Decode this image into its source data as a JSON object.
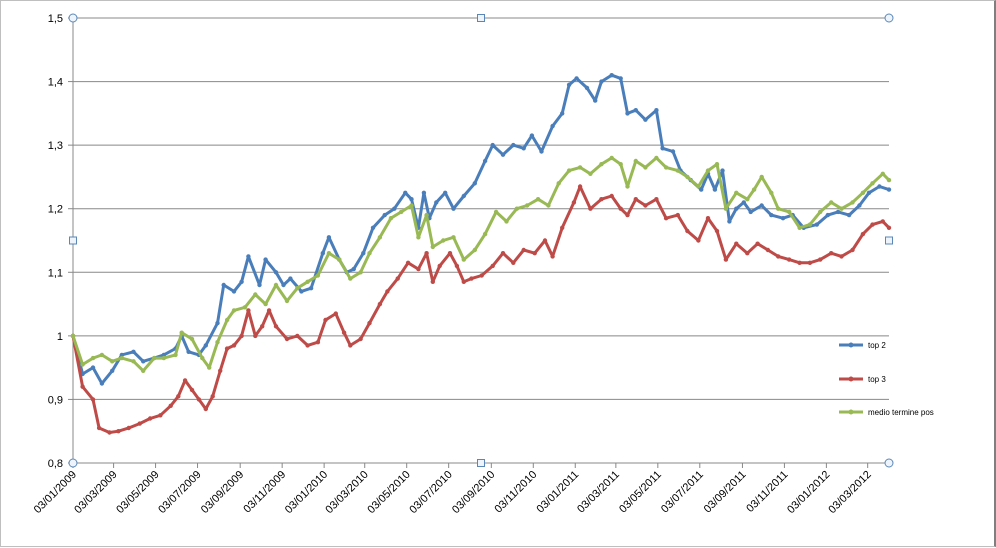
{
  "chart_data": {
    "type": "line",
    "ylim": [
      0.8,
      1.5
    ],
    "y_ticks": [
      "0,8",
      "0,9",
      "1",
      "1,1",
      "1,2",
      "1,3",
      "1,4",
      "1,5"
    ],
    "x_tick_labels": [
      "03/01/2009",
      "03/03/2009",
      "03/05/2009",
      "03/07/2009",
      "03/09/2009",
      "03/11/2009",
      "03/01/2010",
      "03/03/2010",
      "03/05/2010",
      "03/07/2010",
      "03/09/2010",
      "03/11/2010",
      "03/01/2011",
      "03/03/2011",
      "03/05/2011",
      "03/07/2011",
      "03/09/2011",
      "03/11/2011",
      "03/01/2012",
      "03/03/2012"
    ],
    "grid": "horizontal",
    "legend_position": "right",
    "x_range": [
      "2009-01-03",
      "2012-04-03"
    ],
    "series": [
      {
        "name": "top 2",
        "color": "#4a7ebb",
        "points": [
          [
            "2009-01-03",
            1.0
          ],
          [
            "2009-01-17",
            0.94
          ],
          [
            "2009-02-01",
            0.95
          ],
          [
            "2009-02-14",
            0.925
          ],
          [
            "2009-03-01",
            0.945
          ],
          [
            "2009-03-15",
            0.97
          ],
          [
            "2009-04-01",
            0.975
          ],
          [
            "2009-04-15",
            0.96
          ],
          [
            "2009-05-01",
            0.965
          ],
          [
            "2009-05-15",
            0.97
          ],
          [
            "2009-06-01",
            0.98
          ],
          [
            "2009-06-10",
            1.0
          ],
          [
            "2009-06-20",
            0.975
          ],
          [
            "2009-07-05",
            0.97
          ],
          [
            "2009-07-15",
            0.985
          ],
          [
            "2009-08-01",
            1.02
          ],
          [
            "2009-08-10",
            1.08
          ],
          [
            "2009-08-25",
            1.07
          ],
          [
            "2009-09-05",
            1.085
          ],
          [
            "2009-09-15",
            1.125
          ],
          [
            "2009-10-01",
            1.08
          ],
          [
            "2009-10-10",
            1.12
          ],
          [
            "2009-10-25",
            1.1
          ],
          [
            "2009-11-05",
            1.08
          ],
          [
            "2009-11-15",
            1.09
          ],
          [
            "2009-12-01",
            1.07
          ],
          [
            "2009-12-15",
            1.075
          ],
          [
            "2010-01-01",
            1.13
          ],
          [
            "2010-01-10",
            1.155
          ],
          [
            "2010-01-25",
            1.12
          ],
          [
            "2010-02-05",
            1.1
          ],
          [
            "2010-02-15",
            1.105
          ],
          [
            "2010-03-01",
            1.13
          ],
          [
            "2010-03-15",
            1.17
          ],
          [
            "2010-04-01",
            1.19
          ],
          [
            "2010-04-15",
            1.2
          ],
          [
            "2010-05-01",
            1.225
          ],
          [
            "2010-05-10",
            1.215
          ],
          [
            "2010-05-20",
            1.17
          ],
          [
            "2010-05-28",
            1.225
          ],
          [
            "2010-06-05",
            1.185
          ],
          [
            "2010-06-15",
            1.21
          ],
          [
            "2010-06-28",
            1.225
          ],
          [
            "2010-07-10",
            1.2
          ],
          [
            "2010-07-25",
            1.22
          ],
          [
            "2010-08-10",
            1.24
          ],
          [
            "2010-08-25",
            1.275
          ],
          [
            "2010-09-05",
            1.3
          ],
          [
            "2010-09-20",
            1.285
          ],
          [
            "2010-10-05",
            1.3
          ],
          [
            "2010-10-20",
            1.295
          ],
          [
            "2010-11-01",
            1.315
          ],
          [
            "2010-11-15",
            1.29
          ],
          [
            "2010-12-01",
            1.33
          ],
          [
            "2010-12-15",
            1.35
          ],
          [
            "2010-12-25",
            1.395
          ],
          [
            "2011-01-05",
            1.405
          ],
          [
            "2011-01-20",
            1.39
          ],
          [
            "2011-02-01",
            1.37
          ],
          [
            "2011-02-10",
            1.4
          ],
          [
            "2011-02-25",
            1.41
          ],
          [
            "2011-03-10",
            1.405
          ],
          [
            "2011-03-20",
            1.35
          ],
          [
            "2011-04-01",
            1.355
          ],
          [
            "2011-04-15",
            1.34
          ],
          [
            "2011-05-01",
            1.355
          ],
          [
            "2011-05-10",
            1.295
          ],
          [
            "2011-05-25",
            1.29
          ],
          [
            "2011-06-05",
            1.26
          ],
          [
            "2011-06-20",
            1.245
          ],
          [
            "2011-07-05",
            1.23
          ],
          [
            "2011-07-15",
            1.255
          ],
          [
            "2011-07-25",
            1.23
          ],
          [
            "2011-08-05",
            1.26
          ],
          [
            "2011-08-15",
            1.18
          ],
          [
            "2011-08-25",
            1.2
          ],
          [
            "2011-09-05",
            1.21
          ],
          [
            "2011-09-15",
            1.195
          ],
          [
            "2011-10-01",
            1.205
          ],
          [
            "2011-10-15",
            1.19
          ],
          [
            "2011-11-01",
            1.185
          ],
          [
            "2011-11-15",
            1.19
          ],
          [
            "2011-12-01",
            1.17
          ],
          [
            "2011-12-20",
            1.175
          ],
          [
            "2012-01-05",
            1.19
          ],
          [
            "2012-01-20",
            1.195
          ],
          [
            "2012-02-05",
            1.19
          ],
          [
            "2012-02-20",
            1.205
          ],
          [
            "2012-03-05",
            1.225
          ],
          [
            "2012-03-20",
            1.235
          ],
          [
            "2012-04-03",
            1.23
          ]
        ]
      },
      {
        "name": "top 3",
        "color": "#be4b48",
        "points": [
          [
            "2009-01-03",
            1.0
          ],
          [
            "2009-01-17",
            0.92
          ],
          [
            "2009-02-01",
            0.9
          ],
          [
            "2009-02-10",
            0.855
          ],
          [
            "2009-02-25",
            0.848
          ],
          [
            "2009-03-10",
            0.85
          ],
          [
            "2009-03-25",
            0.855
          ],
          [
            "2009-04-10",
            0.862
          ],
          [
            "2009-04-25",
            0.87
          ],
          [
            "2009-05-10",
            0.875
          ],
          [
            "2009-05-25",
            0.89
          ],
          [
            "2009-06-05",
            0.905
          ],
          [
            "2009-06-15",
            0.93
          ],
          [
            "2009-06-25",
            0.915
          ],
          [
            "2009-07-05",
            0.9
          ],
          [
            "2009-07-15",
            0.885
          ],
          [
            "2009-07-25",
            0.905
          ],
          [
            "2009-08-05",
            0.945
          ],
          [
            "2009-08-15",
            0.98
          ],
          [
            "2009-08-25",
            0.985
          ],
          [
            "2009-09-05",
            1.0
          ],
          [
            "2009-09-15",
            1.04
          ],
          [
            "2009-09-25",
            1.0
          ],
          [
            "2009-10-05",
            1.015
          ],
          [
            "2009-10-15",
            1.04
          ],
          [
            "2009-10-25",
            1.015
          ],
          [
            "2009-11-10",
            0.995
          ],
          [
            "2009-11-25",
            1.0
          ],
          [
            "2009-12-10",
            0.985
          ],
          [
            "2009-12-25",
            0.99
          ],
          [
            "2010-01-05",
            1.025
          ],
          [
            "2010-01-20",
            1.035
          ],
          [
            "2010-02-01",
            1.005
          ],
          [
            "2010-02-10",
            0.985
          ],
          [
            "2010-02-25",
            0.995
          ],
          [
            "2010-03-10",
            1.02
          ],
          [
            "2010-03-25",
            1.05
          ],
          [
            "2010-04-05",
            1.07
          ],
          [
            "2010-04-20",
            1.09
          ],
          [
            "2010-05-05",
            1.115
          ],
          [
            "2010-05-20",
            1.105
          ],
          [
            "2010-06-01",
            1.13
          ],
          [
            "2010-06-10",
            1.085
          ],
          [
            "2010-06-20",
            1.11
          ],
          [
            "2010-07-05",
            1.13
          ],
          [
            "2010-07-15",
            1.11
          ],
          [
            "2010-07-25",
            1.085
          ],
          [
            "2010-08-05",
            1.09
          ],
          [
            "2010-08-20",
            1.095
          ],
          [
            "2010-09-05",
            1.11
          ],
          [
            "2010-09-20",
            1.13
          ],
          [
            "2010-10-05",
            1.115
          ],
          [
            "2010-10-20",
            1.135
          ],
          [
            "2010-11-05",
            1.13
          ],
          [
            "2010-11-20",
            1.15
          ],
          [
            "2010-12-01",
            1.125
          ],
          [
            "2010-12-15",
            1.17
          ],
          [
            "2011-01-01",
            1.21
          ],
          [
            "2011-01-10",
            1.235
          ],
          [
            "2011-01-25",
            1.2
          ],
          [
            "2011-02-10",
            1.215
          ],
          [
            "2011-02-25",
            1.22
          ],
          [
            "2011-03-10",
            1.2
          ],
          [
            "2011-03-20",
            1.19
          ],
          [
            "2011-04-01",
            1.215
          ],
          [
            "2011-04-15",
            1.205
          ],
          [
            "2011-05-01",
            1.215
          ],
          [
            "2011-05-15",
            1.185
          ],
          [
            "2011-06-01",
            1.19
          ],
          [
            "2011-06-15",
            1.165
          ],
          [
            "2011-07-01",
            1.15
          ],
          [
            "2011-07-15",
            1.185
          ],
          [
            "2011-07-28",
            1.165
          ],
          [
            "2011-08-10",
            1.12
          ],
          [
            "2011-08-25",
            1.145
          ],
          [
            "2011-09-10",
            1.13
          ],
          [
            "2011-09-25",
            1.145
          ],
          [
            "2011-10-10",
            1.135
          ],
          [
            "2011-10-25",
            1.125
          ],
          [
            "2011-11-10",
            1.12
          ],
          [
            "2011-11-25",
            1.115
          ],
          [
            "2011-12-10",
            1.115
          ],
          [
            "2011-12-25",
            1.12
          ],
          [
            "2012-01-10",
            1.13
          ],
          [
            "2012-01-25",
            1.125
          ],
          [
            "2012-02-10",
            1.135
          ],
          [
            "2012-02-25",
            1.16
          ],
          [
            "2012-03-10",
            1.175
          ],
          [
            "2012-03-25",
            1.18
          ],
          [
            "2012-04-03",
            1.17
          ]
        ]
      },
      {
        "name": "medio termine pos",
        "color": "#98b954",
        "points": [
          [
            "2009-01-03",
            1.0
          ],
          [
            "2009-01-17",
            0.955
          ],
          [
            "2009-02-01",
            0.965
          ],
          [
            "2009-02-14",
            0.97
          ],
          [
            "2009-03-01",
            0.96
          ],
          [
            "2009-03-15",
            0.965
          ],
          [
            "2009-04-01",
            0.96
          ],
          [
            "2009-04-15",
            0.945
          ],
          [
            "2009-05-01",
            0.965
          ],
          [
            "2009-05-15",
            0.965
          ],
          [
            "2009-06-01",
            0.97
          ],
          [
            "2009-06-10",
            1.005
          ],
          [
            "2009-06-25",
            0.995
          ],
          [
            "2009-07-10",
            0.965
          ],
          [
            "2009-07-20",
            0.95
          ],
          [
            "2009-08-01",
            0.99
          ],
          [
            "2009-08-15",
            1.025
          ],
          [
            "2009-08-25",
            1.04
          ],
          [
            "2009-09-10",
            1.045
          ],
          [
            "2009-09-25",
            1.065
          ],
          [
            "2009-10-10",
            1.05
          ],
          [
            "2009-10-25",
            1.08
          ],
          [
            "2009-11-10",
            1.055
          ],
          [
            "2009-11-25",
            1.075
          ],
          [
            "2009-12-10",
            1.085
          ],
          [
            "2009-12-25",
            1.095
          ],
          [
            "2010-01-10",
            1.13
          ],
          [
            "2010-01-25",
            1.12
          ],
          [
            "2010-02-10",
            1.09
          ],
          [
            "2010-02-25",
            1.1
          ],
          [
            "2010-03-10",
            1.13
          ],
          [
            "2010-03-25",
            1.155
          ],
          [
            "2010-04-10",
            1.185
          ],
          [
            "2010-04-25",
            1.195
          ],
          [
            "2010-05-10",
            1.205
          ],
          [
            "2010-05-20",
            1.155
          ],
          [
            "2010-06-01",
            1.19
          ],
          [
            "2010-06-10",
            1.14
          ],
          [
            "2010-06-25",
            1.15
          ],
          [
            "2010-07-10",
            1.155
          ],
          [
            "2010-07-25",
            1.12
          ],
          [
            "2010-08-10",
            1.135
          ],
          [
            "2010-08-25",
            1.16
          ],
          [
            "2010-09-10",
            1.195
          ],
          [
            "2010-09-25",
            1.18
          ],
          [
            "2010-10-10",
            1.2
          ],
          [
            "2010-10-25",
            1.205
          ],
          [
            "2010-11-10",
            1.215
          ],
          [
            "2010-11-25",
            1.205
          ],
          [
            "2010-12-10",
            1.24
          ],
          [
            "2010-12-25",
            1.26
          ],
          [
            "2011-01-10",
            1.265
          ],
          [
            "2011-01-25",
            1.255
          ],
          [
            "2011-02-10",
            1.27
          ],
          [
            "2011-02-25",
            1.28
          ],
          [
            "2011-03-10",
            1.27
          ],
          [
            "2011-03-20",
            1.235
          ],
          [
            "2011-04-01",
            1.275
          ],
          [
            "2011-04-15",
            1.265
          ],
          [
            "2011-05-01",
            1.28
          ],
          [
            "2011-05-15",
            1.265
          ],
          [
            "2011-06-01",
            1.26
          ],
          [
            "2011-06-15",
            1.25
          ],
          [
            "2011-07-01",
            1.235
          ],
          [
            "2011-07-15",
            1.26
          ],
          [
            "2011-07-28",
            1.27
          ],
          [
            "2011-08-10",
            1.2
          ],
          [
            "2011-08-25",
            1.225
          ],
          [
            "2011-09-10",
            1.215
          ],
          [
            "2011-09-20",
            1.23
          ],
          [
            "2011-10-01",
            1.25
          ],
          [
            "2011-10-15",
            1.225
          ],
          [
            "2011-10-25",
            1.2
          ],
          [
            "2011-11-10",
            1.195
          ],
          [
            "2011-11-25",
            1.17
          ],
          [
            "2011-12-10",
            1.175
          ],
          [
            "2011-12-25",
            1.195
          ],
          [
            "2012-01-10",
            1.21
          ],
          [
            "2012-01-25",
            1.2
          ],
          [
            "2012-02-10",
            1.21
          ],
          [
            "2012-02-25",
            1.225
          ],
          [
            "2012-03-10",
            1.24
          ],
          [
            "2012-03-25",
            1.255
          ],
          [
            "2012-04-03",
            1.245
          ]
        ]
      }
    ]
  }
}
